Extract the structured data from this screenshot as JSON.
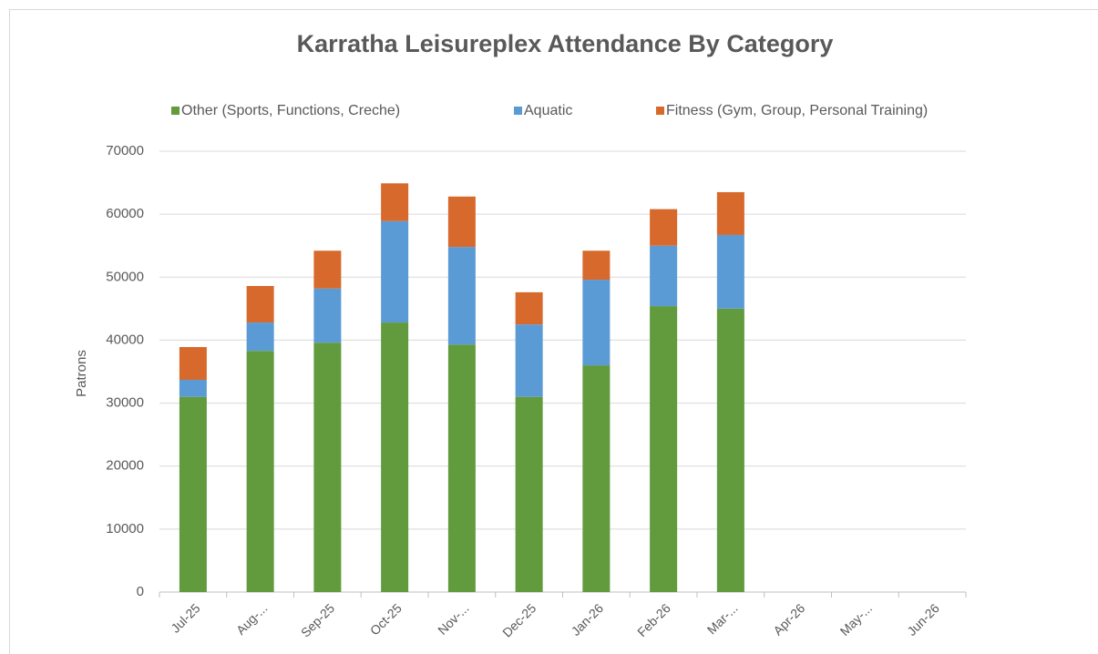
{
  "chart_data": {
    "type": "stacked_bar",
    "title": "Karratha Leisureplex Attendance By Category",
    "y_label": "Patrons",
    "categories": [
      "Jul-25",
      "Aug-...",
      "Sep-25",
      "Oct-25",
      "Nov-...",
      "Dec-25",
      "Jan-26",
      "Feb-26",
      "Mar-...",
      "Apr-26",
      "May-...",
      "Jun-26"
    ],
    "series": [
      {
        "name": "Other (Sports, Functions, Creche)",
        "color": "#629a3e",
        "values": [
          31000,
          38300,
          39600,
          42800,
          39300,
          31000,
          36000,
          45400,
          45000,
          null,
          null,
          null
        ]
      },
      {
        "name": "Aquatic",
        "color": "#5b9bd5",
        "values": [
          2700,
          4500,
          8600,
          16100,
          15500,
          11500,
          13600,
          9600,
          11700,
          null,
          null,
          null
        ]
      },
      {
        "name": "Fitness (Gym, Group, Personal Training)",
        "color": "#d7692d",
        "values": [
          5200,
          5800,
          6000,
          6000,
          8000,
          5100,
          4600,
          5800,
          6800,
          null,
          null,
          null
        ]
      }
    ],
    "ylim": [
      0,
      70000
    ],
    "yticks": [
      0,
      10000,
      20000,
      30000,
      40000,
      50000,
      60000,
      70000
    ],
    "grid": true,
    "legend": "top"
  }
}
